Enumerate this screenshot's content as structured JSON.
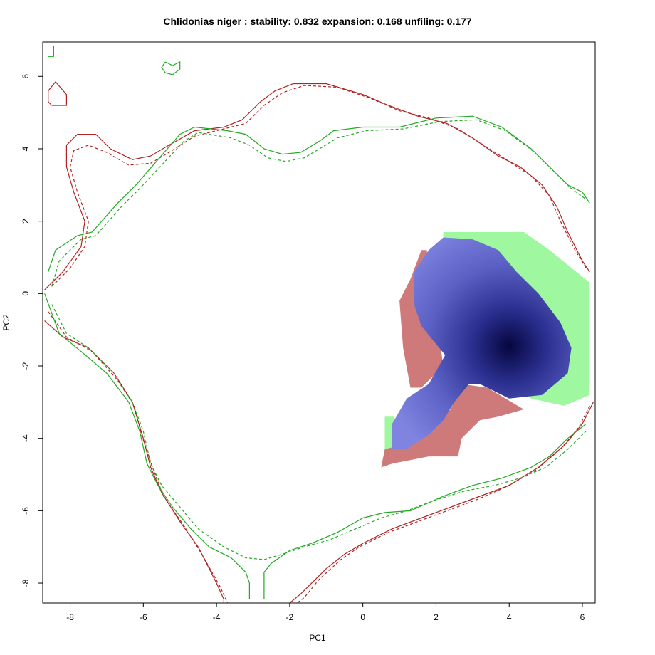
{
  "chart_data": {
    "type": "heatmap",
    "title": "Chlidonias niger : stability: 0.832 expansion: 0.168 unfiling: 0.177",
    "xlabel": "PC1",
    "ylabel": "PC2",
    "xlim": [
      -8.75,
      6.35
    ],
    "ylim": [
      -8.55,
      6.95
    ],
    "xticks": [
      -8,
      -6,
      -4,
      -2,
      0,
      2,
      4,
      6
    ],
    "yticks": [
      -8,
      -6,
      -4,
      -2,
      0,
      2,
      4,
      6
    ],
    "colors": {
      "stability": "#7f84e0",
      "stability_core": "#06063f",
      "expansion": "#9ff79f",
      "unfilling": "#cf7a7a",
      "native_outline": "#b22222",
      "invaded_outline": "#22aa22"
    },
    "regions": {
      "expansion": [
        [
          2.2,
          1.7
        ],
        [
          4.4,
          1.7
        ],
        [
          5.1,
          1.2
        ],
        [
          6.2,
          0.3
        ],
        [
          6.2,
          -2.8
        ],
        [
          5.5,
          -3.1
        ],
        [
          4.6,
          -2.9
        ],
        [
          3.2,
          -2.0
        ],
        [
          2.2,
          1.2
        ]
      ],
      "expansion_lower": [
        [
          0.6,
          -3.4
        ],
        [
          0.85,
          -3.4
        ],
        [
          0.85,
          -4.3
        ],
        [
          0.6,
          -4.3
        ]
      ],
      "unfilling": [
        [
          1.0,
          -0.2
        ],
        [
          1.3,
          0.4
        ],
        [
          1.6,
          1.2
        ],
        [
          1.75,
          1.2
        ],
        [
          1.9,
          -1.1
        ],
        [
          2.1,
          -1.3
        ],
        [
          2.2,
          -2.0
        ],
        [
          1.6,
          -2.6
        ],
        [
          1.3,
          -2.6
        ],
        [
          1.1,
          -1.5
        ]
      ],
      "unfilling_lower": [
        [
          0.5,
          -4.8
        ],
        [
          0.6,
          -4.3
        ],
        [
          1.0,
          -4.2
        ],
        [
          1.6,
          -4.0
        ],
        [
          1.9,
          -3.6
        ],
        [
          2.4,
          -3.2
        ],
        [
          2.7,
          -2.5
        ],
        [
          3.4,
          -2.6
        ],
        [
          4.4,
          -3.2
        ],
        [
          3.7,
          -3.4
        ],
        [
          3.2,
          -3.5
        ],
        [
          2.7,
          -4.0
        ],
        [
          2.6,
          -4.5
        ],
        [
          1.8,
          -4.5
        ],
        [
          0.8,
          -4.7
        ]
      ],
      "stability": [
        [
          2.2,
          1.55
        ],
        [
          3.0,
          1.5
        ],
        [
          3.7,
          1.2
        ],
        [
          4.2,
          0.6
        ],
        [
          4.8,
          0.0
        ],
        [
          5.4,
          -0.8
        ],
        [
          5.7,
          -1.5
        ],
        [
          5.6,
          -2.2
        ],
        [
          4.9,
          -2.8
        ],
        [
          4.0,
          -2.9
        ],
        [
          3.2,
          -2.5
        ],
        [
          2.9,
          -2.5
        ],
        [
          2.5,
          -3.0
        ],
        [
          2.2,
          -3.5
        ],
        [
          1.8,
          -3.9
        ],
        [
          1.2,
          -4.3
        ],
        [
          0.8,
          -4.3
        ],
        [
          0.8,
          -3.6
        ],
        [
          1.2,
          -2.9
        ],
        [
          1.8,
          -2.5
        ],
        [
          2.25,
          -1.7
        ],
        [
          1.6,
          -0.9
        ],
        [
          1.4,
          -0.3
        ],
        [
          1.4,
          0.6
        ],
        [
          1.8,
          1.2
        ]
      ]
    },
    "density_peak": {
      "x": 4.0,
      "y": -1.45
    },
    "contours": {
      "native_solid": [
        [
          -8.7,
          -0.75
        ],
        [
          -8.2,
          -1.2
        ],
        [
          -7.5,
          -1.5
        ],
        [
          -6.8,
          -2.2
        ],
        [
          -6.3,
          -3.0
        ],
        [
          -6.0,
          -4.0
        ],
        [
          -5.8,
          -4.8
        ],
        [
          -5.5,
          -5.5
        ],
        [
          -5.0,
          -6.3
        ],
        [
          -4.5,
          -7.0
        ],
        [
          -4.0,
          -8.0
        ],
        [
          -3.8,
          -8.45
        ],
        [
          -3.8,
          -8.55
        ]
      ],
      "native_dashed": [
        [
          -8.6,
          -0.5
        ],
        [
          -8.1,
          -1.2
        ],
        [
          -7.4,
          -1.6
        ],
        [
          -6.7,
          -2.4
        ],
        [
          -6.25,
          -3.1
        ],
        [
          -6.05,
          -3.9
        ],
        [
          -5.75,
          -4.8
        ],
        [
          -5.45,
          -5.6
        ],
        [
          -4.9,
          -6.4
        ],
        [
          -4.4,
          -7.2
        ],
        [
          -3.9,
          -8.1
        ],
        [
          -3.7,
          -8.55
        ]
      ],
      "native_top": [
        [
          -8.7,
          0.1
        ],
        [
          -8.2,
          0.6
        ],
        [
          -7.7,
          1.3
        ],
        [
          -7.6,
          2.0
        ],
        [
          -7.9,
          2.8
        ],
        [
          -8.1,
          3.5
        ],
        [
          -8.1,
          4.1
        ],
        [
          -7.8,
          4.4
        ],
        [
          -7.3,
          4.4
        ],
        [
          -6.9,
          4.0
        ],
        [
          -6.3,
          3.7
        ],
        [
          -5.8,
          3.8
        ],
        [
          -5.3,
          4.1
        ],
        [
          -4.6,
          4.5
        ],
        [
          -3.8,
          4.6
        ],
        [
          -3.3,
          4.8
        ],
        [
          -2.8,
          5.3
        ],
        [
          -2.4,
          5.6
        ],
        [
          -1.9,
          5.8
        ],
        [
          -1.0,
          5.8
        ],
        [
          0.0,
          5.5
        ],
        [
          0.7,
          5.2
        ],
        [
          1.5,
          4.9
        ],
        [
          2.3,
          4.7
        ],
        [
          3.0,
          4.3
        ],
        [
          3.7,
          3.8
        ],
        [
          4.3,
          3.5
        ],
        [
          4.9,
          3.0
        ],
        [
          5.3,
          2.4
        ],
        [
          5.6,
          1.7
        ],
        [
          6.0,
          0.9
        ],
        [
          6.2,
          0.6
        ]
      ],
      "native_top_dashed": [
        [
          -8.5,
          0.2
        ],
        [
          -8.0,
          0.7
        ],
        [
          -7.6,
          1.3
        ],
        [
          -7.5,
          2.0
        ],
        [
          -7.8,
          2.8
        ],
        [
          -8.0,
          3.5
        ],
        [
          -7.9,
          3.95
        ],
        [
          -7.5,
          4.1
        ],
        [
          -7.0,
          3.9
        ],
        [
          -6.4,
          3.55
        ],
        [
          -5.8,
          3.6
        ],
        [
          -5.3,
          3.9
        ],
        [
          -4.6,
          4.35
        ],
        [
          -3.8,
          4.55
        ],
        [
          -3.2,
          4.7
        ],
        [
          -2.7,
          5.2
        ],
        [
          -2.2,
          5.55
        ],
        [
          -1.6,
          5.75
        ],
        [
          -0.7,
          5.7
        ],
        [
          0.2,
          5.4
        ],
        [
          1.0,
          5.05
        ],
        [
          1.8,
          4.85
        ],
        [
          2.6,
          4.55
        ],
        [
          3.3,
          4.1
        ],
        [
          4.0,
          3.65
        ],
        [
          4.6,
          3.25
        ],
        [
          5.1,
          2.7
        ],
        [
          5.4,
          2.0
        ],
        [
          5.8,
          1.2
        ],
        [
          6.1,
          0.7
        ]
      ],
      "native_lower_right": [
        [
          6.3,
          -3.0
        ],
        [
          6.0,
          -3.6
        ],
        [
          5.5,
          -4.2
        ],
        [
          4.8,
          -4.8
        ],
        [
          4.0,
          -5.3
        ],
        [
          3.2,
          -5.6
        ],
        [
          2.4,
          -5.9
        ],
        [
          1.6,
          -6.2
        ],
        [
          0.8,
          -6.5
        ],
        [
          0.0,
          -6.9
        ],
        [
          -0.5,
          -7.2
        ],
        [
          -1.0,
          -7.6
        ],
        [
          -1.7,
          -8.3
        ],
        [
          -2.0,
          -8.55
        ]
      ],
      "native_lower_right_dashed": [
        [
          6.2,
          -3.1
        ],
        [
          5.9,
          -3.7
        ],
        [
          5.4,
          -4.3
        ],
        [
          4.7,
          -4.9
        ],
        [
          3.9,
          -5.35
        ],
        [
          3.1,
          -5.7
        ],
        [
          2.3,
          -6.0
        ],
        [
          1.5,
          -6.3
        ],
        [
          0.7,
          -6.6
        ],
        [
          -0.1,
          -7.0
        ],
        [
          -0.6,
          -7.35
        ],
        [
          -1.2,
          -7.9
        ],
        [
          -1.6,
          -8.4
        ],
        [
          -1.8,
          -8.55
        ]
      ],
      "native_blob": [
        [
          -8.5,
          5.2
        ],
        [
          -8.1,
          5.2
        ],
        [
          -8.1,
          5.5
        ],
        [
          -8.4,
          5.85
        ],
        [
          -8.6,
          5.6
        ],
        [
          -8.6,
          5.3
        ]
      ],
      "invaded_solid": [
        [
          -8.6,
          0.6
        ],
        [
          -8.4,
          1.2
        ],
        [
          -7.8,
          1.6
        ],
        [
          -7.4,
          1.7
        ],
        [
          -6.7,
          2.5
        ],
        [
          -6.2,
          3.0
        ],
        [
          -5.6,
          3.7
        ],
        [
          -5.0,
          4.4
        ],
        [
          -4.6,
          4.6
        ],
        [
          -3.7,
          4.5
        ],
        [
          -3.2,
          4.4
        ],
        [
          -2.7,
          4.0
        ],
        [
          -2.2,
          3.85
        ],
        [
          -1.7,
          3.9
        ],
        [
          -1.2,
          4.2
        ],
        [
          -0.8,
          4.5
        ],
        [
          0.0,
          4.6
        ],
        [
          1.0,
          4.6
        ],
        [
          2.0,
          4.85
        ],
        [
          3.0,
          4.9
        ],
        [
          3.8,
          4.6
        ],
        [
          4.6,
          4.0
        ],
        [
          5.2,
          3.4
        ],
        [
          5.6,
          3.0
        ],
        [
          6.0,
          2.8
        ],
        [
          6.2,
          2.5
        ]
      ],
      "invaded_dashed": [
        [
          -8.5,
          0.2
        ],
        [
          -8.3,
          0.9
        ],
        [
          -7.7,
          1.5
        ],
        [
          -7.3,
          1.6
        ],
        [
          -6.6,
          2.4
        ],
        [
          -6.1,
          2.9
        ],
        [
          -5.5,
          3.55
        ],
        [
          -4.9,
          4.2
        ],
        [
          -4.5,
          4.45
        ],
        [
          -3.6,
          4.3
        ],
        [
          -3.1,
          4.1
        ],
        [
          -2.6,
          3.75
        ],
        [
          -2.1,
          3.65
        ],
        [
          -1.6,
          3.75
        ],
        [
          -1.1,
          4.05
        ],
        [
          -0.7,
          4.3
        ],
        [
          0.1,
          4.5
        ],
        [
          1.1,
          4.55
        ],
        [
          2.1,
          4.75
        ],
        [
          3.1,
          4.8
        ],
        [
          3.9,
          4.5
        ],
        [
          4.7,
          3.9
        ],
        [
          5.3,
          3.3
        ],
        [
          5.7,
          2.9
        ],
        [
          6.1,
          2.6
        ]
      ],
      "invaded_left": [
        [
          -8.7,
          0.0
        ],
        [
          -8.3,
          -1.1
        ],
        [
          -7.7,
          -1.6
        ],
        [
          -7.0,
          -2.2
        ],
        [
          -6.4,
          -3.0
        ],
        [
          -6.1,
          -3.8
        ],
        [
          -5.9,
          -4.7
        ],
        [
          -5.6,
          -5.3
        ],
        [
          -5.2,
          -5.9
        ],
        [
          -4.7,
          -6.5
        ],
        [
          -4.2,
          -7.0
        ],
        [
          -3.6,
          -7.3
        ],
        [
          -3.2,
          -7.7
        ],
        [
          -3.1,
          -8.0
        ],
        [
          -3.1,
          -8.45
        ]
      ],
      "invaded_left_dashed": [
        [
          -8.5,
          -0.3
        ],
        [
          -8.1,
          -1.1
        ],
        [
          -7.5,
          -1.5
        ],
        [
          -6.8,
          -2.2
        ],
        [
          -6.3,
          -3.0
        ],
        [
          -6.0,
          -3.8
        ],
        [
          -5.8,
          -4.7
        ],
        [
          -5.5,
          -5.3
        ],
        [
          -5.0,
          -5.9
        ],
        [
          -4.5,
          -6.5
        ],
        [
          -3.8,
          -7.0
        ],
        [
          -3.2,
          -7.3
        ],
        [
          -2.7,
          -7.35
        ],
        [
          -2.2,
          -7.2
        ],
        [
          -1.6,
          -7.0
        ],
        [
          -0.9,
          -6.8
        ],
        [
          -0.2,
          -6.5
        ],
        [
          0.5,
          -6.2
        ],
        [
          1.2,
          -6.0
        ],
        [
          2.0,
          -5.7
        ],
        [
          2.8,
          -5.45
        ],
        [
          3.6,
          -5.3
        ],
        [
          4.3,
          -5.1
        ],
        [
          5.0,
          -4.8
        ],
        [
          5.6,
          -4.3
        ],
        [
          6.1,
          -3.8
        ]
      ],
      "invaded_bottom": [
        [
          -2.7,
          -8.45
        ],
        [
          -2.7,
          -7.7
        ],
        [
          -2.5,
          -7.45
        ],
        [
          -2.0,
          -7.1
        ],
        [
          -1.4,
          -6.9
        ],
        [
          -0.7,
          -6.6
        ],
        [
          0.0,
          -6.2
        ],
        [
          0.6,
          -6.05
        ],
        [
          1.3,
          -6.0
        ],
        [
          2.2,
          -5.6
        ],
        [
          3.0,
          -5.3
        ],
        [
          3.8,
          -5.1
        ],
        [
          4.6,
          -4.8
        ],
        [
          5.1,
          -4.5
        ],
        [
          5.6,
          -4.0
        ],
        [
          6.1,
          -3.6
        ]
      ],
      "invaded_blob": [
        [
          -5.4,
          6.4
        ],
        [
          -5.2,
          6.3
        ],
        [
          -5.0,
          6.4
        ],
        [
          -5.0,
          6.2
        ],
        [
          -5.2,
          6.05
        ],
        [
          -5.4,
          6.1
        ],
        [
          -5.5,
          6.25
        ]
      ],
      "invaded_corner": [
        [
          -8.6,
          6.55
        ],
        [
          -8.45,
          6.55
        ],
        [
          -8.45,
          6.85
        ]
      ]
    }
  }
}
